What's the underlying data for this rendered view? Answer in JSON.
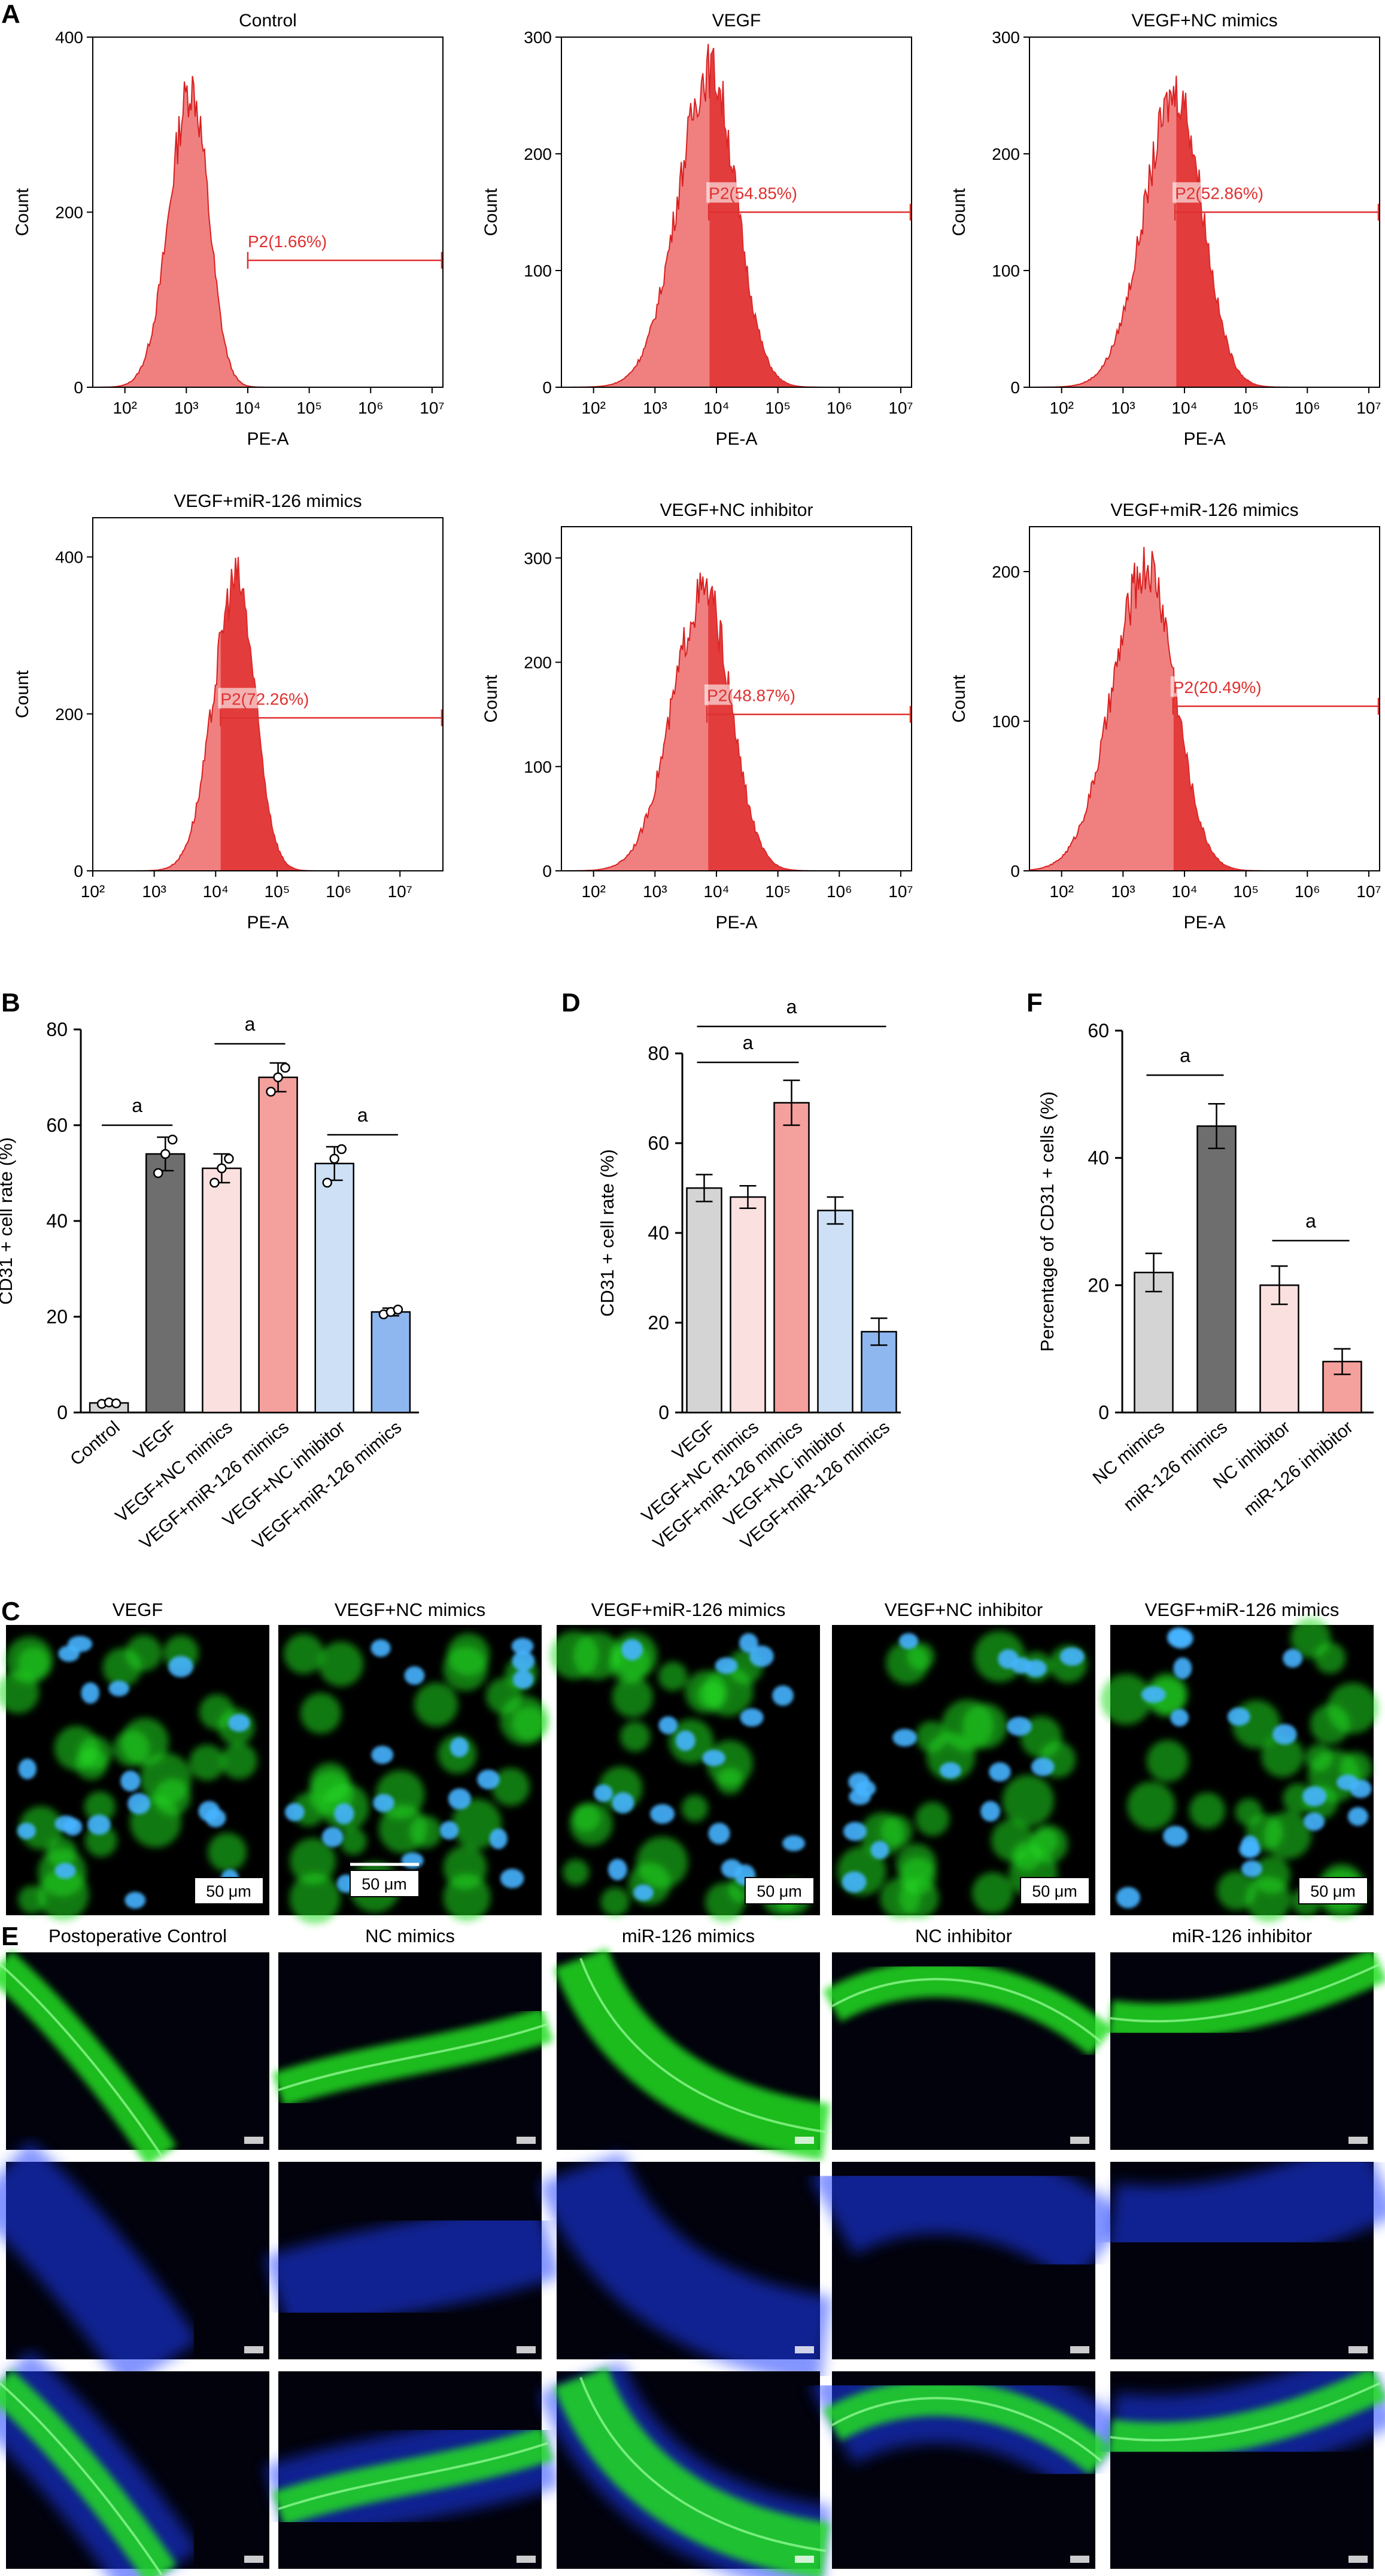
{
  "colors": {
    "histogram_fill": "#f08080",
    "histogram_gate_fill": "#e03030",
    "histogram_line": "#d82020",
    "gate_text": "#e03030",
    "micro_green": "#22dd22",
    "micro_blue": "#1a3cff",
    "micro_cyan": "#46b4ff"
  },
  "panels": {
    "A": "A",
    "B": "B",
    "C": "C",
    "D": "D",
    "E": "E",
    "F": "F"
  },
  "chart_data": [
    {
      "type": "histogram",
      "panel": "A",
      "title": "Control",
      "xlabel": "PE-A",
      "ylabel": "Count",
      "xscale": "log",
      "xlim": [
        30,
        15000000
      ],
      "ylim": [
        0,
        400
      ],
      "yticks": [
        0,
        200,
        400
      ],
      "xticks": [
        "10²",
        "10³",
        "10⁴",
        "10⁵",
        "10⁶",
        "10⁷"
      ],
      "peak_x": 1200,
      "peak_y": 345,
      "spread_log": 0.28,
      "gate": {
        "label": "P2(1.66%)",
        "start": 10000,
        "y": 145
      }
    },
    {
      "type": "histogram",
      "panel": "A",
      "title": "VEGF",
      "xlabel": "PE-A",
      "ylabel": "Count",
      "xscale": "log",
      "xlim": [
        30,
        15000000
      ],
      "ylim": [
        0,
        300
      ],
      "yticks": [
        0,
        100,
        200,
        300
      ],
      "xticks": [
        "10²",
        "10³",
        "10⁴",
        "10⁵",
        "10⁶",
        "10⁷"
      ],
      "peak_x": 8000,
      "peak_y": 275,
      "spread_log": 0.42,
      "gate": {
        "label": "P2(54.85%)",
        "start": 7500,
        "y": 150
      }
    },
    {
      "type": "histogram",
      "panel": "A",
      "title": "VEGF+NC mimics",
      "xlabel": "PE-A",
      "ylabel": "Count",
      "xscale": "log",
      "xlim": [
        30,
        15000000
      ],
      "ylim": [
        0,
        300
      ],
      "yticks": [
        0,
        100,
        200,
        300
      ],
      "xticks": [
        "10²",
        "10³",
        "10⁴",
        "10⁵",
        "10⁶",
        "10⁷"
      ],
      "peak_x": 7500,
      "peak_y": 255,
      "spread_log": 0.42,
      "gate": {
        "label": "P2(52.86%)",
        "start": 7000,
        "y": 150
      }
    },
    {
      "type": "histogram",
      "panel": "A",
      "title": "VEGF+miR-126 mimics",
      "xlabel": "PE-A",
      "ylabel": "Count",
      "xscale": "log",
      "xlim": [
        100,
        50000000
      ],
      "ylim": [
        0,
        450
      ],
      "yticks": [
        0,
        200,
        400
      ],
      "xticks": [
        "10²",
        "10³",
        "10⁴",
        "10⁵",
        "10⁶",
        "10⁷"
      ],
      "peak_x": 22000,
      "peak_y": 375,
      "spread_log": 0.3,
      "gate": {
        "label": "P2(72.26%)",
        "start": 12000,
        "y": 195
      }
    },
    {
      "type": "histogram",
      "panel": "A",
      "title": "VEGF+NC inhibitor",
      "xlabel": "PE-A",
      "ylabel": "Count",
      "xscale": "log",
      "xlim": [
        30,
        15000000
      ],
      "ylim": [
        0,
        330
      ],
      "yticks": [
        0,
        100,
        200,
        300
      ],
      "xticks": [
        "10²",
        "10³",
        "10⁴",
        "10⁵",
        "10⁶",
        "10⁷"
      ],
      "peak_x": 6500,
      "peak_y": 270,
      "spread_log": 0.42,
      "gate": {
        "label": "P2(48.87%)",
        "start": 7000,
        "y": 150
      }
    },
    {
      "type": "histogram",
      "panel": "A",
      "title": "VEGF+miR-126 mimics",
      "xlabel": "PE-A",
      "ylabel": "Count",
      "xscale": "log",
      "xlim": [
        30,
        15000000
      ],
      "ylim": [
        0,
        230
      ],
      "yticks": [
        0,
        100,
        200
      ],
      "xticks": [
        "10²",
        "10³",
        "10⁴",
        "10⁵",
        "10⁶",
        "10⁷"
      ],
      "peak_x": 2500,
      "peak_y": 205,
      "spread_log": 0.45,
      "gate": {
        "label": "P2(20.49%)",
        "start": 6500,
        "y": 110
      }
    },
    {
      "type": "bar",
      "panel": "B",
      "ylabel": "CD31 + cell rate (%)",
      "ylim": [
        0,
        80
      ],
      "yticks": [
        0,
        20,
        40,
        60,
        80
      ],
      "categories": [
        "Control",
        "VEGF",
        "VEGF+NC mimics",
        "VEGF+miR-126 mimics",
        "VEGF+NC inhibitor",
        "VEGF+miR-126 mimics"
      ],
      "values": [
        2,
        54,
        51,
        70,
        52,
        21
      ],
      "errors": [
        0.5,
        3.5,
        3,
        3,
        3.5,
        0.8
      ],
      "points": [
        [
          1.8,
          2.1,
          1.9
        ],
        [
          50,
          54,
          57
        ],
        [
          48,
          51,
          53
        ],
        [
          67,
          70,
          72
        ],
        [
          48,
          53,
          55
        ],
        [
          20.5,
          21,
          21.5
        ]
      ],
      "colors": [
        "#d4d4d4",
        "#6e6e6e",
        "#fbe0e0",
        "#f4a09c",
        "#cde0f5",
        "#8fb7ef"
      ],
      "significance": [
        {
          "from": 0,
          "to": 1,
          "y": 60,
          "label": "a"
        },
        {
          "from": 2,
          "to": 3,
          "y": 77,
          "label": "a"
        },
        {
          "from": 4,
          "to": 5,
          "y": 58,
          "label": "a"
        }
      ]
    },
    {
      "type": "bar",
      "panel": "D",
      "ylabel": "CD31 + cell rate (%)",
      "ylim": [
        0,
        80
      ],
      "yticks": [
        0,
        20,
        40,
        60,
        80
      ],
      "categories": [
        "VEGF",
        "VEGF+NC mimics",
        "VEGF+miR-126 mimics",
        "VEGF+NC inhibitor",
        "VEGF+miR-126 mimics"
      ],
      "values": [
        50,
        48,
        69,
        45,
        18
      ],
      "errors": [
        3,
        2.5,
        5,
        3,
        3
      ],
      "colors": [
        "#d4d4d4",
        "#fbe0e0",
        "#f4a09c",
        "#cde0f5",
        "#8fb7ef"
      ],
      "significance": [
        {
          "from": 0,
          "to": 2,
          "y": 78,
          "label": "a"
        },
        {
          "from": 0,
          "to": 4,
          "y": 86,
          "label": "a"
        }
      ]
    },
    {
      "type": "bar",
      "panel": "F",
      "ylabel": "Percentage of CD31 + cells (%)",
      "ylim": [
        0,
        60
      ],
      "yticks": [
        0,
        20,
        40,
        60
      ],
      "categories": [
        "NC mimics",
        "miR-126 mimics",
        "NC inhibitor",
        "miR-126 inhibitor"
      ],
      "values": [
        22,
        45,
        20,
        8
      ],
      "errors": [
        3,
        3.5,
        3,
        2
      ],
      "colors": [
        "#d4d4d4",
        "#6e6e6e",
        "#fbe0e0",
        "#f4a09c"
      ],
      "significance": [
        {
          "from": 0,
          "to": 1,
          "y": 53,
          "label": "a"
        },
        {
          "from": 2,
          "to": 3,
          "y": 27,
          "label": "a"
        }
      ]
    }
  ],
  "microscopy_C": {
    "titles": [
      "VEGF",
      "VEGF+NC mimics",
      "VEGF+miR-126 mimics",
      "VEGF+NC inhibitor",
      "VEGF+miR-126 mimics"
    ],
    "scale_bar": "50 μm"
  },
  "microscopy_E": {
    "titles": [
      "Postoperative Control",
      "NC mimics",
      "miR-126 mimics",
      "NC inhibitor",
      "miR-126 inhibitor"
    ]
  }
}
